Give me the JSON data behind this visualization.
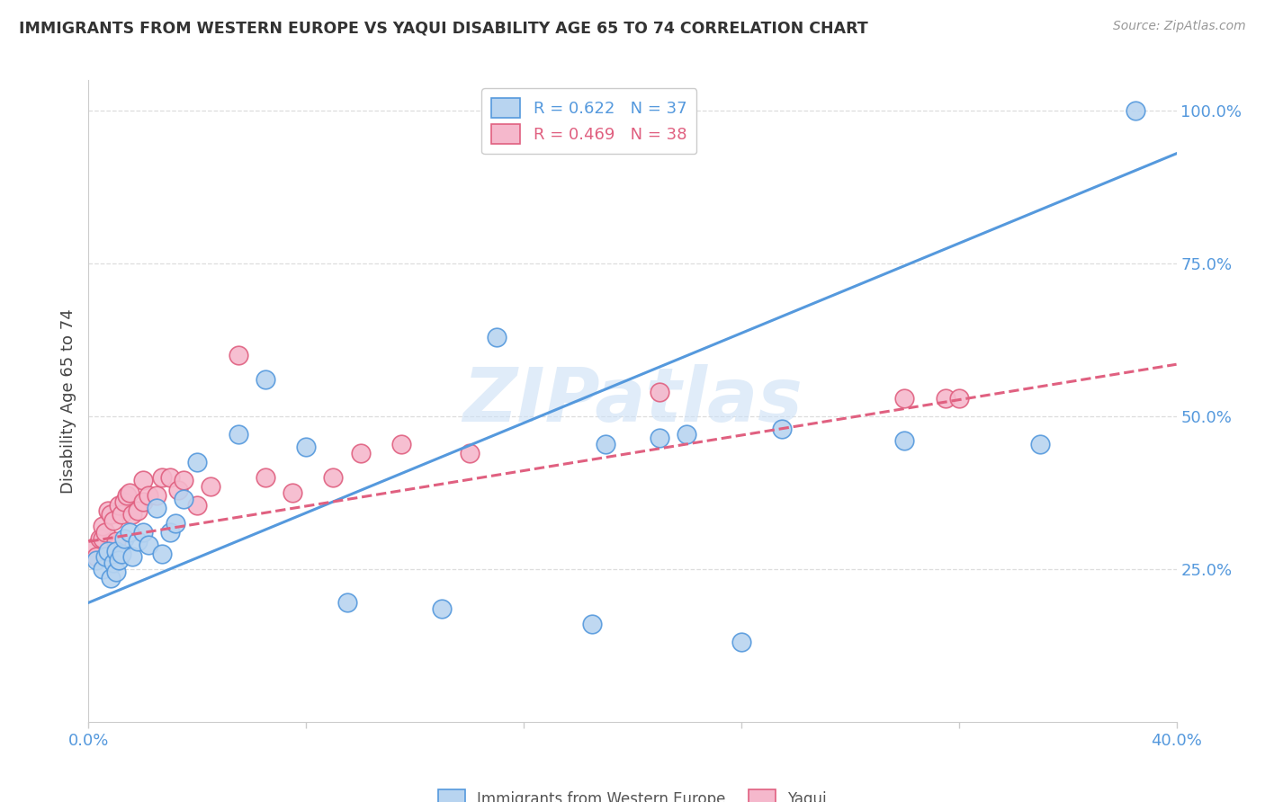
{
  "title": "IMMIGRANTS FROM WESTERN EUROPE VS YAQUI DISABILITY AGE 65 TO 74 CORRELATION CHART",
  "source": "Source: ZipAtlas.com",
  "xlabel_blue": "Immigrants from Western Europe",
  "xlabel_pink": "Yaqui",
  "ylabel": "Disability Age 65 to 74",
  "xmin": 0.0,
  "xmax": 0.4,
  "ymin": 0.0,
  "ymax": 1.05,
  "xticks": [
    0.0,
    0.08,
    0.16,
    0.24,
    0.32,
    0.4
  ],
  "xtick_labels": [
    "0.0%",
    "",
    "",
    "",
    "",
    "40.0%"
  ],
  "yticks_right": [
    0.25,
    0.5,
    0.75,
    1.0
  ],
  "ytick_labels_right": [
    "25.0%",
    "50.0%",
    "75.0%",
    "100.0%"
  ],
  "legend_r_blue": "R = 0.622",
  "legend_n_blue": "N = 37",
  "legend_r_pink": "R = 0.469",
  "legend_n_pink": "N = 38",
  "blue_color": "#b8d4f0",
  "blue_line_color": "#5599dd",
  "pink_color": "#f5b8cc",
  "pink_line_color": "#e06080",
  "watermark_color": "#cce0f5",
  "grid_color": "#dddddd",
  "blue_scatter_x": [
    0.003,
    0.005,
    0.006,
    0.007,
    0.008,
    0.009,
    0.01,
    0.01,
    0.011,
    0.012,
    0.013,
    0.015,
    0.016,
    0.018,
    0.02,
    0.022,
    0.025,
    0.027,
    0.03,
    0.032,
    0.035,
    0.04,
    0.055,
    0.065,
    0.08,
    0.095,
    0.13,
    0.15,
    0.185,
    0.19,
    0.21,
    0.22,
    0.24,
    0.255,
    0.3,
    0.35,
    0.385
  ],
  "blue_scatter_y": [
    0.265,
    0.25,
    0.27,
    0.28,
    0.235,
    0.26,
    0.245,
    0.28,
    0.265,
    0.275,
    0.3,
    0.31,
    0.27,
    0.295,
    0.31,
    0.29,
    0.35,
    0.275,
    0.31,
    0.325,
    0.365,
    0.425,
    0.47,
    0.56,
    0.45,
    0.195,
    0.185,
    0.63,
    0.16,
    0.455,
    0.465,
    0.47,
    0.13,
    0.48,
    0.46,
    0.455,
    1.0
  ],
  "pink_scatter_x": [
    0.002,
    0.003,
    0.004,
    0.005,
    0.005,
    0.006,
    0.007,
    0.008,
    0.009,
    0.01,
    0.011,
    0.012,
    0.013,
    0.014,
    0.015,
    0.016,
    0.018,
    0.02,
    0.02,
    0.022,
    0.025,
    0.027,
    0.03,
    0.033,
    0.035,
    0.04,
    0.045,
    0.055,
    0.065,
    0.075,
    0.09,
    0.1,
    0.115,
    0.14,
    0.21,
    0.3,
    0.315,
    0.32
  ],
  "pink_scatter_y": [
    0.285,
    0.27,
    0.3,
    0.3,
    0.32,
    0.31,
    0.345,
    0.34,
    0.33,
    0.295,
    0.355,
    0.34,
    0.36,
    0.37,
    0.375,
    0.34,
    0.345,
    0.36,
    0.395,
    0.37,
    0.37,
    0.4,
    0.4,
    0.38,
    0.395,
    0.355,
    0.385,
    0.6,
    0.4,
    0.375,
    0.4,
    0.44,
    0.455,
    0.44,
    0.54,
    0.53,
    0.53,
    0.53
  ],
  "blue_trendline_x": [
    0.0,
    0.4
  ],
  "blue_trendline_y": [
    0.195,
    0.93
  ],
  "pink_trendline_x": [
    0.0,
    0.4
  ],
  "pink_trendline_y": [
    0.295,
    0.585
  ]
}
